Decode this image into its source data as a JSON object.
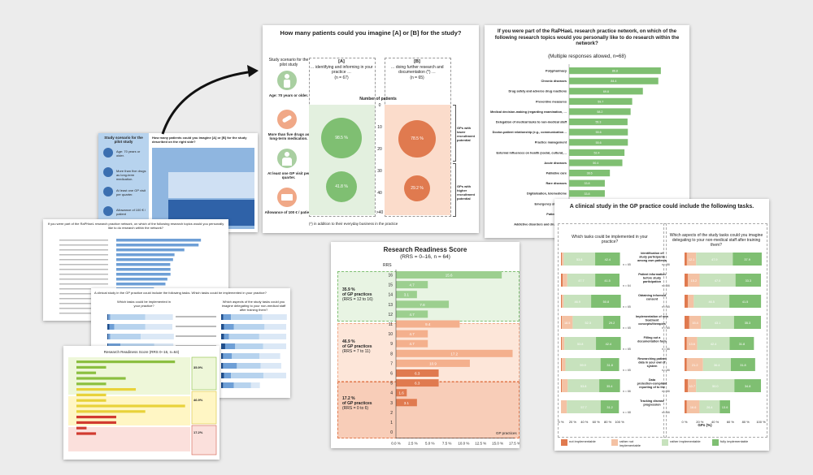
{
  "scenario": {
    "title": "How many patients could you imagine [A] or [B] for the study?",
    "study_scenario_label": "Study scenario for the pilot study",
    "col_a_head": "[A]",
    "col_a_desc": "… identifying and informing in your practice …",
    "col_a_n": "(n = 67)",
    "col_b_head": "[B]",
    "col_b_desc": "… doing further research and documentation (*) …",
    "col_b_n": "(n = 65)",
    "number_of_patients": "Number of patients",
    "items": [
      "Age: 70 years or older.",
      "More than five drugs as long-term medication.",
      "At least one GP visit per quarter.",
      "Allowance of 100 € / patient"
    ],
    "ticks": [
      "0",
      "10",
      "20",
      "30",
      "40",
      ">40"
    ],
    "pct_a_top": "98.5 %",
    "pct_a_bottom": "41.8 %",
    "pct_b_top": "78.5 %",
    "pct_b_bottom": "29.2 %",
    "group_top": "GPs with lower recruitment potential",
    "group_bottom": "GPs with higher recruitment potential",
    "footnote": "(*) in addition to their everyday business in the practice"
  },
  "topics": {
    "title": "If you were part of the RaPHaeL research practice network, on which of the following research topics would you personally like to do research within the network?",
    "subtitle": "(Multiple responses allowed, n=68)"
  },
  "topics_chart_data": {
    "type": "bar",
    "categories": [
      "Polypharmacy",
      "Chronic diseases",
      "Drug safety and adverse drug reactions",
      "Preventive measures",
      "Medical decision-making (regarding examination, diagnosis, therapy) and prioritisation",
      "Delegation of medical tasks to non-medical staff",
      "Doctor-patient relationship (e.g., communication, compliance)",
      "Practice management",
      "External influences on health (social, cultural, environmental)",
      "Acute diseases",
      "Palliative care",
      "Rare diseases",
      "Digitalisation, telemedicine",
      "Emergency situations",
      "Patient safety",
      "Addictive disorders and drug abuse"
    ],
    "values": [
      86.8,
      84.4,
      69.8,
      59.7,
      58.2,
      55.3,
      55.6,
      55.6,
      52.4,
      50.4,
      38.6,
      33.8,
      33.8,
      30.0,
      28.0,
      26.0
    ]
  },
  "rrs": {
    "title": "Research Readiness Score",
    "subtitle": "(RRS = 0–16, n = 64)",
    "axis_label": "RRS",
    "x_label": "GP practices",
    "groups": [
      {
        "pct": "35.9 %",
        "label": "of GP practices",
        "range": "(RRS = 12 to 16)"
      },
      {
        "pct": "46.9 %",
        "label": "of GP practices",
        "range": "(RRS = 7 to 11)"
      },
      {
        "pct": "17.2 %",
        "label": "of GP practices",
        "range": "(RRS = 0 to 6)"
      }
    ]
  },
  "rrs_chart_data": {
    "type": "bar",
    "categories": [
      "16",
      "15",
      "14",
      "13",
      "12",
      "11",
      "10",
      "9",
      "8",
      "7",
      "6",
      "5",
      "4",
      "3",
      "2",
      "1",
      "0"
    ],
    "values": [
      15.6,
      4.7,
      3.1,
      7.8,
      4.7,
      9.4,
      4.7,
      4.7,
      17.2,
      10.9,
      6.3,
      6.3,
      1.6,
      3.1,
      0,
      0,
      0
    ],
    "value_labels": [
      "15.6",
      "4.7",
      "3.1",
      "7.8",
      "4.7",
      "9.4",
      "4.7",
      "4.7",
      "17.2",
      "10.9",
      "6.3",
      "6.3",
      "1.6",
      "3.1",
      "",
      "",
      ""
    ],
    "ticks": [
      "0.0 %",
      "2.5 %",
      "5.0 %",
      "7.5 %",
      "10.0 %",
      "12.5 %",
      "15.0 %",
      "17.5 %"
    ],
    "xlim": [
      0,
      17.5
    ]
  },
  "clinical": {
    "title": "A clinical study in the GP practice could include the following tasks.",
    "left_head": "Which tasks could be implemented in your practice?",
    "right_head": "Which aspects of the study tasks could you imagine delegating to your non-medical staff after training them?",
    "legend": [
      "not implementable",
      "rather not implementable",
      "rather implementable",
      "fully implementable"
    ],
    "legend_colors": [
      "#e07a4f",
      "#f4c2a4",
      "#c7e2bd",
      "#7fbf72"
    ],
    "x_label": "GPs (%)",
    "ticks": [
      "0 %",
      "20 %",
      "40 %",
      "60 %",
      "80 %",
      "100 %"
    ]
  },
  "clinical_chart_data": {
    "type": "bar",
    "tasks": [
      {
        "label": "Identification of study participants among own patients",
        "n_left": "n = 65",
        "n_right": "n = 66"
      },
      {
        "label": "Patient information before study participation",
        "n_left": "n = 64",
        "n_right": "n = 66"
      },
      {
        "label": "Obtaining informed consent",
        "n_left": "n = 65",
        "n_right": "n = 65"
      },
      {
        "label": "Implementation of new treatment concepts/therapies",
        "n_left": "n = 65",
        "n_right": "n = 65"
      },
      {
        "label": "Filling out a documentation form",
        "n_left": "n = 65",
        "n_right": "n = 66"
      },
      {
        "label": "Researching patient data in your own IT system",
        "n_left": "n = 65",
        "n_right": "n = 66"
      },
      {
        "label": "Data protection-compliant reporting of to the university's study team",
        "n_left": "n = 66",
        "n_right": "n = 66"
      },
      {
        "label": "Tracking disease progression",
        "n_left": "n = 68",
        "n_right": "n = 66"
      }
    ],
    "left_values": [
      [
        1.5,
        3.1,
        53.8,
        42.4
      ],
      [
        3.1,
        7.7,
        47.7,
        41.5
      ],
      [
        1.5,
        3.1,
        46.9,
        50.8
      ],
      [
        1.5,
        18.5,
        52.3,
        29.2
      ],
      [
        1.5,
        4.5,
        53.8,
        42.4
      ],
      [
        1.5,
        6.2,
        59.9,
        31.8
      ],
      [
        1.5,
        10.1,
        53.8,
        35.4
      ],
      [
        0,
        10.1,
        57.7,
        31.2
      ]
    ],
    "left_labels": [
      [
        "1.5",
        "3.1",
        "53.8",
        "42.4"
      ],
      [
        "3.1",
        "7.7",
        "47.7",
        "41.5"
      ],
      [
        "1.5",
        "3.1",
        "46.9",
        "50.8"
      ],
      [
        "1.5",
        "18.5",
        "52.3",
        "29.2"
      ],
      [
        "1.5",
        "4.5",
        "53.8",
        "42.4"
      ],
      [
        "1.5",
        "6.2",
        "59.9",
        "31.8"
      ],
      [
        "1.5",
        "10.1",
        "53.8",
        "35.4"
      ],
      [
        "",
        "10.1",
        "57.7",
        "31.2"
      ]
    ],
    "right_values": [
      [
        3.1,
        12.1,
        47.9,
        37.9
      ],
      [
        4.5,
        15.2,
        47.0,
        33.3
      ],
      [
        4.5,
        7.6,
        46.5,
        41.5
      ],
      [
        6.2,
        15.4,
        43.1,
        35.3
      ],
      [
        3.0,
        13.6,
        42.4,
        31.8
      ],
      [
        3.0,
        21.2,
        36.4,
        31.8
      ],
      [
        4.5,
        10.7,
        50.0,
        34.8
      ],
      [
        3.0,
        16.6,
        26.4,
        13.6
      ]
    ],
    "right_labels": [
      [
        "",
        "12.1",
        "47.9",
        "37.9"
      ],
      [
        "",
        "15.2",
        "47.0",
        "33.3"
      ],
      [
        "",
        "7.6",
        "46.5",
        "41.5"
      ],
      [
        "6.2",
        "15.4",
        "43.1",
        "35.3"
      ],
      [
        "",
        "13.6",
        "42.4",
        "31.8"
      ],
      [
        "",
        "21.2",
        "36.4",
        "31.8"
      ],
      [
        "",
        "10.7",
        "50.0",
        "34.8"
      ],
      [
        "",
        "16.6",
        "26.4",
        "13.6"
      ]
    ]
  },
  "thumb1": {
    "scenario_label": "Study scenario for the pilot study",
    "question": "How many patients could you imagine [A] or [B] for the study described on the right side?",
    "items": [
      "Age: 70 years or older.",
      "More than five drugs as long-term medication.",
      "At least one GP visit per quarter.",
      "Allowance of 100 € / patient"
    ],
    "footnote": "(*) in addition to their everyday business in the practice"
  },
  "thumb2": {
    "title": "If you were part of the RaPHaeL research practice network, on which of the following research topics would you personally like to do research within the network?"
  },
  "thumb3": {
    "title": "A clinical study in the GP practice could include the following tasks. Which tasks could be implemented in your practice?",
    "left_head": "Which tasks could be implemented in your practice?",
    "right_head": "Which aspects of the study tasks could you imagine delegating to your non-medical staff after training them?"
  },
  "thumb4": {
    "title": "Research Readiness Score (RRS 0–16, n=64)",
    "labels": [
      "35.9%",
      "46.9%",
      "17.2%"
    ]
  }
}
